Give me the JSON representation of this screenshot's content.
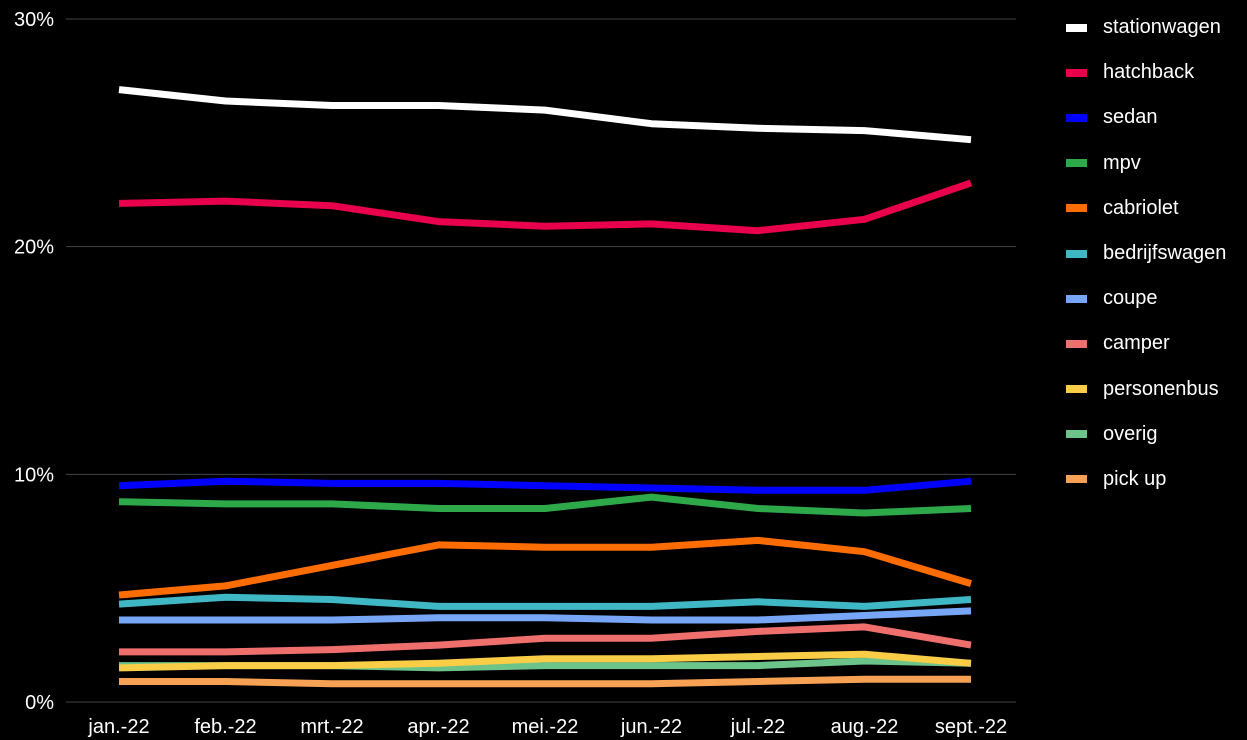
{
  "chart_data": {
    "type": "line",
    "title": "",
    "xlabel": "",
    "ylabel": "",
    "categories": [
      "jan.-22",
      "feb.-22",
      "mrt.-22",
      "apr.-22",
      "mei.-22",
      "jun.-22",
      "jul.-22",
      "aug.-22",
      "sept.-22"
    ],
    "yticks": [
      "0%",
      "10%",
      "20%",
      "30%"
    ],
    "ylim": [
      0,
      30
    ],
    "grid": true,
    "legend_position": "right",
    "series": [
      {
        "name": "stationwagen",
        "color": "#ffffff",
        "values": [
          26.9,
          26.4,
          26.2,
          26.2,
          26.0,
          25.4,
          25.2,
          25.1,
          24.7
        ]
      },
      {
        "name": "hatchback",
        "color": "#e8004c",
        "values": [
          21.9,
          22.0,
          21.8,
          21.1,
          20.9,
          21.0,
          20.7,
          21.2,
          22.8
        ]
      },
      {
        "name": "sedan",
        "color": "#0000ff",
        "values": [
          9.5,
          9.7,
          9.6,
          9.6,
          9.5,
          9.4,
          9.3,
          9.3,
          9.7
        ]
      },
      {
        "name": "mpv",
        "color": "#2ea94a",
        "values": [
          8.8,
          8.7,
          8.7,
          8.5,
          8.5,
          9.0,
          8.5,
          8.3,
          8.5
        ]
      },
      {
        "name": "cabriolet",
        "color": "#ff6d00",
        "values": [
          4.7,
          5.1,
          6.0,
          6.9,
          6.8,
          6.8,
          7.1,
          6.6,
          5.2
        ]
      },
      {
        "name": "bedrijfswagen",
        "color": "#3fb7c4",
        "values": [
          4.3,
          4.6,
          4.5,
          4.2,
          4.2,
          4.2,
          4.4,
          4.2,
          4.5
        ]
      },
      {
        "name": "coupe",
        "color": "#78a6f7",
        "values": [
          3.6,
          3.6,
          3.6,
          3.7,
          3.7,
          3.6,
          3.6,
          3.8,
          4.0
        ]
      },
      {
        "name": "camper",
        "color": "#ef6f6c",
        "values": [
          2.2,
          2.2,
          2.3,
          2.5,
          2.8,
          2.8,
          3.1,
          3.3,
          2.5
        ]
      },
      {
        "name": "personenbus",
        "color": "#f9cd46",
        "values": [
          1.5,
          1.6,
          1.6,
          1.7,
          1.9,
          1.9,
          2.0,
          2.1,
          1.7
        ]
      },
      {
        "name": "overig",
        "color": "#6cc48a",
        "values": [
          1.6,
          1.6,
          1.6,
          1.5,
          1.6,
          1.6,
          1.6,
          1.8,
          1.7
        ]
      },
      {
        "name": "pick up",
        "color": "#f7a154",
        "values": [
          0.9,
          0.9,
          0.8,
          0.8,
          0.8,
          0.8,
          0.9,
          1.0,
          1.0
        ]
      }
    ]
  }
}
